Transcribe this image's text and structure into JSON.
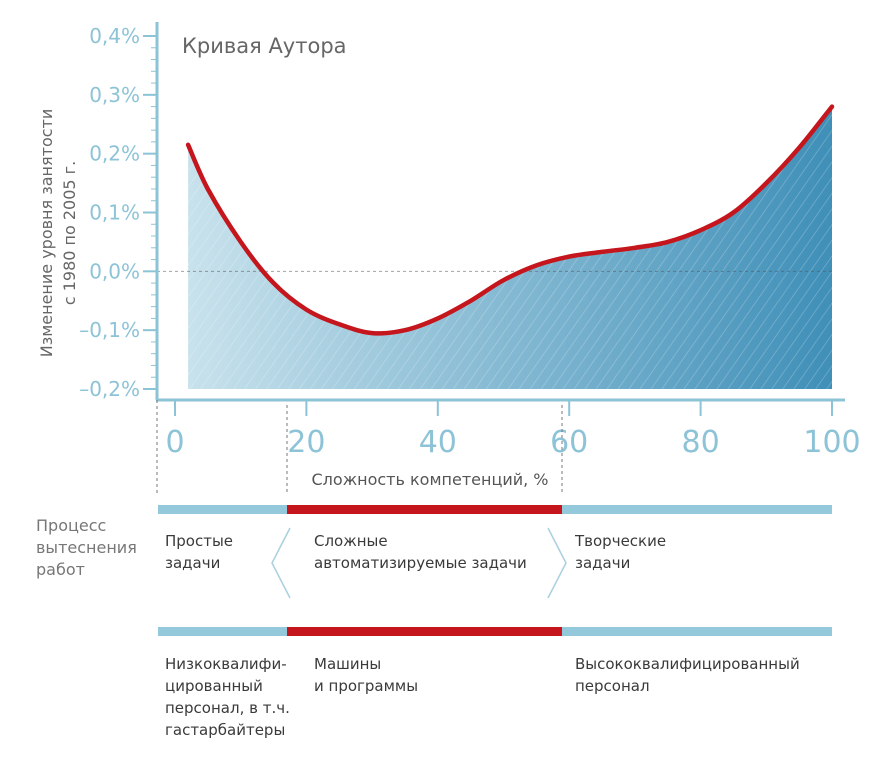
{
  "chart_data": {
    "type": "area",
    "title": "Кривая Аутора",
    "ylabel_line1": "Изменение уровня занятости",
    "ylabel_line2": "с 1980 по 2005 г.",
    "xlabel": "Сложность компетенций, %",
    "xlim": [
      0,
      100
    ],
    "ylim": [
      -0.2,
      0.4
    ],
    "x_ticks": [
      0,
      20,
      40,
      60,
      80,
      100
    ],
    "x_tick_labels": [
      "0",
      "20",
      "40",
      "60",
      "80",
      "100"
    ],
    "y_ticks": [
      0.4,
      0.3,
      0.2,
      0.1,
      0.0,
      -0.1,
      -0.2
    ],
    "y_tick_labels": [
      "0,4%",
      "0,3%",
      "0,2%",
      "0,1%",
      "0,0%",
      "–0,1%",
      "–0,2%"
    ],
    "series": [
      {
        "x": [
          2,
          5,
          10,
          15,
          20,
          25,
          30,
          35,
          40,
          45,
          50,
          55,
          60,
          65,
          70,
          75,
          80,
          85,
          90,
          95,
          100
        ],
        "y": [
          0.215,
          0.14,
          0.05,
          -0.02,
          -0.065,
          -0.09,
          -0.105,
          -0.1,
          -0.08,
          -0.05,
          -0.015,
          0.01,
          0.025,
          0.033,
          0.04,
          0.05,
          0.07,
          0.1,
          0.15,
          0.21,
          0.28
        ]
      }
    ],
    "line_color": "#c4161c",
    "fill_color_light": "#c8e2ec",
    "fill_color_dark": "#3f8fb8",
    "axis_color": "#8cc3d6"
  },
  "process": {
    "label": "Процесс\nвытеснения\nработ",
    "tasks": {
      "simple": "Простые\nзадачи",
      "complex": "Сложные\nавтоматизируемые задачи",
      "creative": "Творческие\nзадачи"
    },
    "workers": {
      "low": "Низкоквалифи-\nцированный\nперсонал, в т.ч.\nгастарбайтеры",
      "machines": "Машины\nи программы",
      "high": "Высококвалифицированный\nперсонал"
    },
    "bar_color_blue": "#93c9db",
    "bar_color_red": "#c4161c"
  }
}
